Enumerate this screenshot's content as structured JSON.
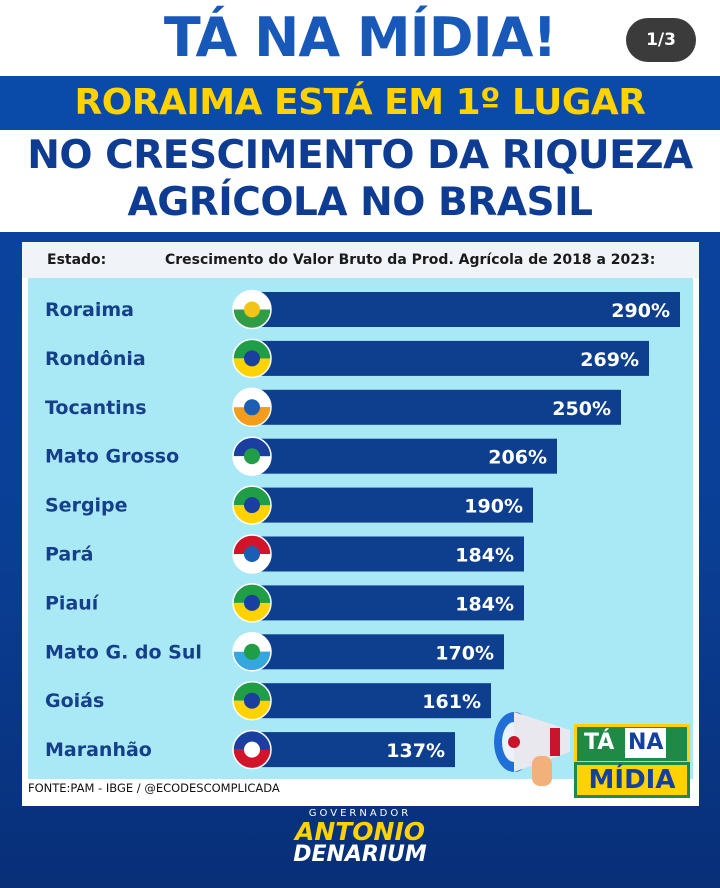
{
  "header": {
    "title": "TÁ NA MÍDIA!",
    "page_counter": "1/3",
    "subtitle_line1": "RORAIMA ESTÁ EM 1º LUGAR",
    "subtitle_line2": "NO CRESCIMENTO DA RIQUEZA",
    "subtitle_line3": "AGRÍCOLA NO BRASIL"
  },
  "table_header": {
    "left": "Estado:",
    "right": "Crescimento do Valor Bruto da Prod. Agrícola de 2018 a 2023:"
  },
  "source": "FONTE:PAM - IBGE / @ECODESCOMPLICADA",
  "seal": {
    "ta": "TÁ",
    "na": "NA",
    "midia": "MÍDIA"
  },
  "footer": {
    "label": "GOVERNADOR",
    "name1": "ANTONIO",
    "name2": "DENARIUM"
  },
  "colors": {
    "bar": "#0d3f8e",
    "plot_bg": "#a9e8f5",
    "label": "#163f8a",
    "accent": "#ffd200"
  },
  "chart_data": {
    "type": "bar",
    "orientation": "horizontal",
    "title": "Crescimento do Valor Bruto da Prod. Agrícola de 2018 a 2023:",
    "categories": [
      "Roraima",
      "Rondônia",
      "Tocantins",
      "Mato Grosso",
      "Sergipe",
      "Pará",
      "Piauí",
      "Mato G. do Sul",
      "Goiás",
      "Maranhão"
    ],
    "values": [
      290,
      269,
      250,
      206,
      190,
      184,
      184,
      170,
      161,
      137
    ],
    "value_labels": [
      "290%",
      "269%",
      "250%",
      "206%",
      "190%",
      "184%",
      "184%",
      "170%",
      "161%",
      "137%"
    ],
    "unit": "%",
    "flag_icons": [
      "roraima-flag-icon",
      "rondonia-flag-icon",
      "tocantins-flag-icon",
      "mato-grosso-flag-icon",
      "sergipe-flag-icon",
      "para-flag-icon",
      "piaui-flag-icon",
      "mato-grosso-do-sul-flag-icon",
      "goias-flag-icon",
      "maranhao-flag-icon"
    ]
  }
}
